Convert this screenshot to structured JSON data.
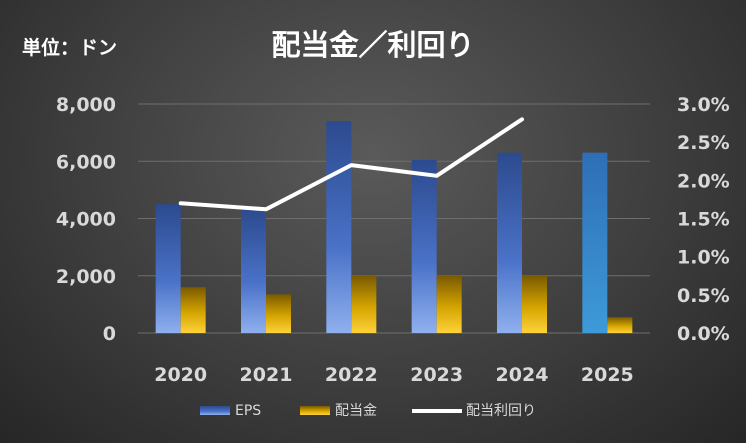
{
  "header": {
    "unit_label": "単位：ドン",
    "title": "配当金／利回り"
  },
  "colors": {
    "eps_bar": "#3a5fb0",
    "eps_bar_forecast": "#3b8fd6",
    "dividend_bar": "#e0b000",
    "yield_line": "#ffffff",
    "tick_text": "#d9d9d9"
  },
  "chart_data": {
    "type": "bar",
    "title": "配当金／利回り",
    "categories": [
      "2020",
      "2021",
      "2022",
      "2023",
      "2024",
      "2025"
    ],
    "series": [
      {
        "name": "EPS",
        "type": "bar",
        "axis": "left",
        "values": [
          4500,
          4350,
          7400,
          6050,
          6300,
          6300
        ]
      },
      {
        "name": "配当金",
        "type": "bar",
        "axis": "left",
        "values": [
          1600,
          1350,
          2000,
          2000,
          2000,
          550
        ]
      },
      {
        "name": "配当利回り",
        "type": "line",
        "axis": "right",
        "values": [
          0.017,
          0.0162,
          0.022,
          0.0206,
          0.028,
          null
        ]
      }
    ],
    "left_axis": {
      "ylim": [
        0,
        8000
      ],
      "ticks": [
        "0",
        "2,000",
        "4,000",
        "6,000",
        "8,000"
      ]
    },
    "right_axis": {
      "ylim": [
        0,
        0.03
      ],
      "ticks": [
        "0.0%",
        "0.5%",
        "1.0%",
        "1.5%",
        "2.0%",
        "2.5%",
        "3.0%"
      ]
    },
    "grid": true,
    "legend": "bottom"
  }
}
